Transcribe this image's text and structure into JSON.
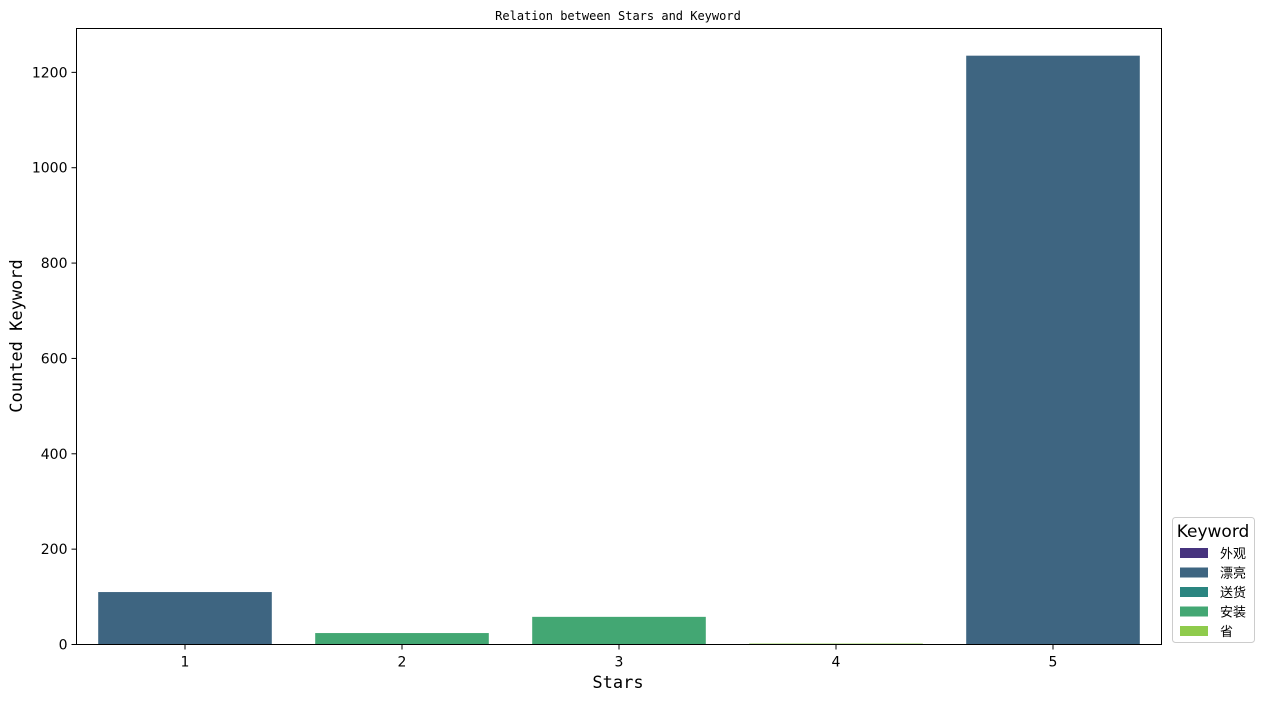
{
  "chart_data": {
    "type": "bar",
    "title": "Relation between Stars and Keyword",
    "xlabel": "Stars",
    "ylabel": "Counted Keyword",
    "categories": [
      "1",
      "2",
      "3",
      "4",
      "5"
    ],
    "ylim": [
      0,
      1292
    ],
    "yticks": [
      0,
      200,
      400,
      600,
      800,
      1000,
      1200
    ],
    "grid": false,
    "legend": {
      "title": "Keyword",
      "placement": "right-bottom",
      "entries": [
        {
          "label": "外观",
          "color": "#46337e"
        },
        {
          "label": "漂亮",
          "color": "#3e6581"
        },
        {
          "label": "送货",
          "color": "#2a8580"
        },
        {
          "label": "安装",
          "color": "#43a773"
        },
        {
          "label": "省",
          "color": "#8fcb4c"
        }
      ]
    },
    "bars": [
      {
        "category": "1",
        "keyword": "漂亮",
        "value": 110,
        "color": "#3e6581"
      },
      {
        "category": "2",
        "keyword": "安装",
        "value": 24,
        "color": "#43a773"
      },
      {
        "category": "3",
        "keyword": "安装",
        "value": 58,
        "color": "#43a773"
      },
      {
        "category": "4",
        "keyword": "省",
        "value": 2,
        "color": "#8fcb4c"
      },
      {
        "category": "5",
        "keyword": "漂亮",
        "value": 1235,
        "color": "#3e6581"
      }
    ]
  }
}
